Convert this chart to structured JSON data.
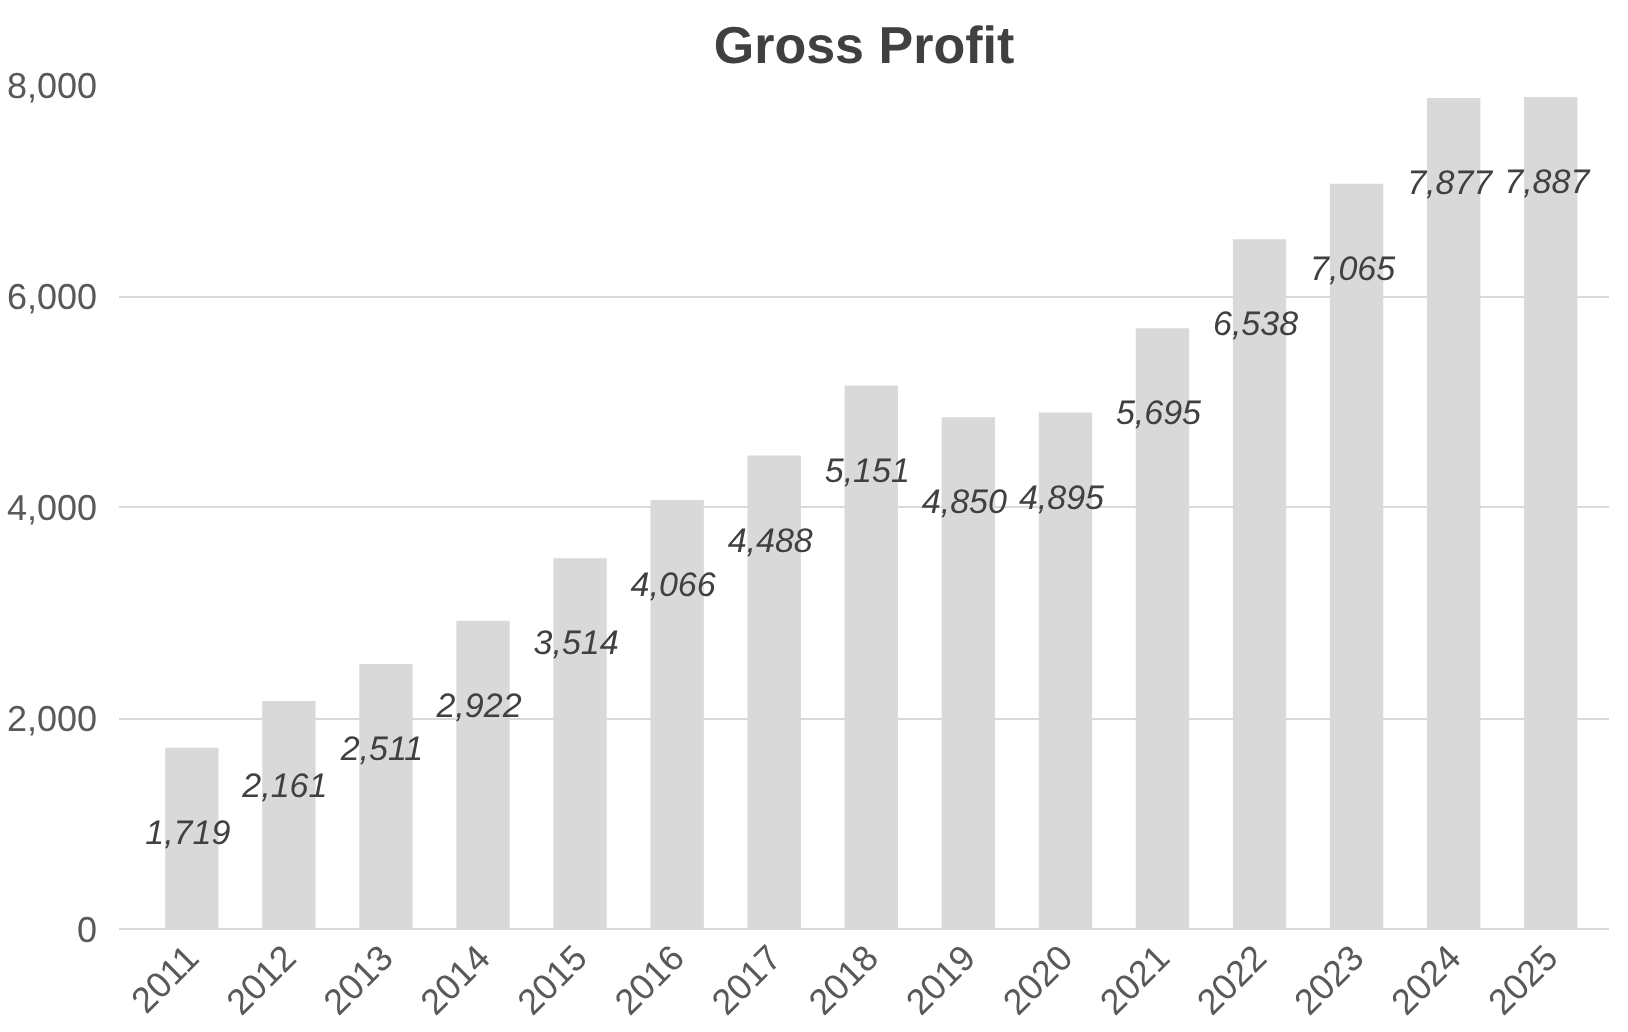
{
  "chart_data": {
    "type": "bar",
    "title": "Gross Profit",
    "categories": [
      "2011",
      "2012",
      "2013",
      "2014",
      "2015",
      "2016",
      "2017",
      "2018",
      "2019",
      "2020",
      "2021",
      "2022",
      "2023",
      "2024",
      "2025"
    ],
    "values": [
      1719,
      2161,
      2511,
      2922,
      3514,
      4066,
      4488,
      5151,
      4850,
      4895,
      5695,
      6538,
      7065,
      7877,
      7887
    ],
    "color": "#d9d9d9",
    "ylim": [
      0,
      8000
    ],
    "yticks": [
      {
        "value": 0,
        "label": "0"
      },
      {
        "value": 2000,
        "label": "2,000"
      },
      {
        "value": 4000,
        "label": "4,000"
      },
      {
        "value": 6000,
        "label": "6,000"
      },
      {
        "value": 8000,
        "label": "8,000"
      }
    ],
    "grid": "y",
    "value_labels": [
      "1,719",
      "2,161",
      "2,511",
      "2,922",
      "3,514",
      "4,066",
      "4,488",
      "5,151",
      "4,850",
      "4,895",
      "5,695",
      "6,538",
      "7,065",
      "7,877",
      "7,887"
    ]
  }
}
